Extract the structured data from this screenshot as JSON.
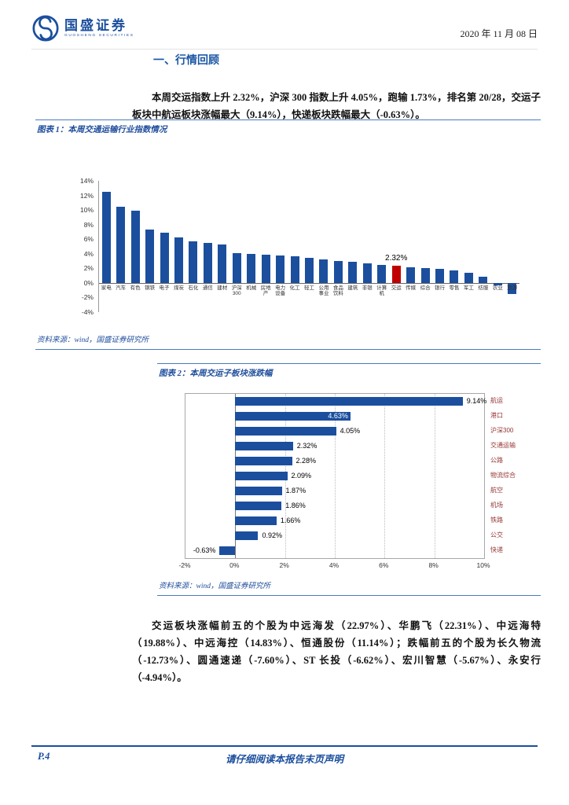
{
  "header": {
    "brand": "国盛证券",
    "brand_sub": "GUOSHENG SECURITIES",
    "date": "2020 年 11 月 08 日"
  },
  "section": {
    "title": "一、行情回顾"
  },
  "paragraphs": {
    "p1": "本周交运指数上升 2.32%，沪深 300 指数上升 4.05%，跑输 1.73%，排名第 20/28，交运子板块中航运板块涨幅最大（9.14%），快递板块跌幅最大（-0.63%）。",
    "p2": "交运板块涨幅前五的个股为中远海发（22.97%）、华鹏飞（22.31%）、中远海特（19.88%）、中远海控（14.83%）、恒通股份（11.14%）；跌幅前五的个股为长久物流（-12.73%）、圆通速递（-7.60%）、ST 长投（-6.62%）、宏川智慧（-5.67%）、永安行（-4.94%）。"
  },
  "figure1": {
    "caption": "图表 1：本周交通运输行业指数情况",
    "source": "资料来源：wind，国盛证券研究所"
  },
  "figure2": {
    "caption": "图表 2：本周交运子板块涨跌幅",
    "source": "资料来源：wind，国盛证券研究所"
  },
  "footer": {
    "page": "P.4",
    "disclaimer": "请仔细阅读本报告末页声明"
  },
  "colors": {
    "brand_blue": "#1b4f9e",
    "bar_blue": "#1b4f9e",
    "highlight_red": "#c00000",
    "caption_blue": "#1f4e9c",
    "category_red": "#943634"
  },
  "chart_data": [
    {
      "type": "bar",
      "title": "本周交通运输行业指数情况",
      "categories": [
        "家电",
        "汽车",
        "有色",
        "钢铁",
        "电子",
        "煤炭",
        "石化",
        "通信",
        "建材",
        "沪深300",
        "机械",
        "房地产",
        "电力设备",
        "化工",
        "轻工",
        "公用事业",
        "食品饮料",
        "建筑",
        "非银",
        "计算机",
        "交运",
        "传媒",
        "综合",
        "银行",
        "零售",
        "军工",
        "纺服",
        "农业",
        "旅游"
      ],
      "values": [
        12.53,
        10.42,
        9.87,
        7.36,
        6.88,
        6.27,
        5.68,
        5.52,
        5.31,
        4.05,
        4.02,
        3.91,
        3.78,
        3.6,
        3.42,
        3.21,
        3.05,
        2.86,
        2.68,
        2.49,
        2.32,
        2.18,
        2.02,
        1.88,
        1.72,
        1.41,
        0.85,
        -0.3,
        -1.55
      ],
      "highlight_index": 20,
      "highlight_label": "2.32%",
      "bar_color": "#1b4f9e",
      "highlight_color": "#c00000",
      "ylim": [
        -4,
        14
      ],
      "ytick_step": 2,
      "ytick_suffix": "%",
      "grid": false,
      "legend": false
    },
    {
      "type": "bar-horizontal",
      "title": "本周交运子板块涨跌幅",
      "categories": [
        "航运",
        "港口",
        "沪深300",
        "交通运输",
        "公路",
        "物流综合",
        "航空",
        "机场",
        "铁路",
        "公交",
        "快递"
      ],
      "values": [
        9.14,
        4.63,
        4.05,
        2.32,
        2.28,
        2.09,
        1.87,
        1.86,
        1.66,
        0.92,
        -0.63
      ],
      "value_label_suffix": "%",
      "inside_label_indices": [
        1
      ],
      "bar_color": "#1b4f9e",
      "xlim": [
        -2,
        10
      ],
      "xtick_step": 2,
      "category_label_color": "#943634",
      "grid": true,
      "legend": false
    }
  ]
}
